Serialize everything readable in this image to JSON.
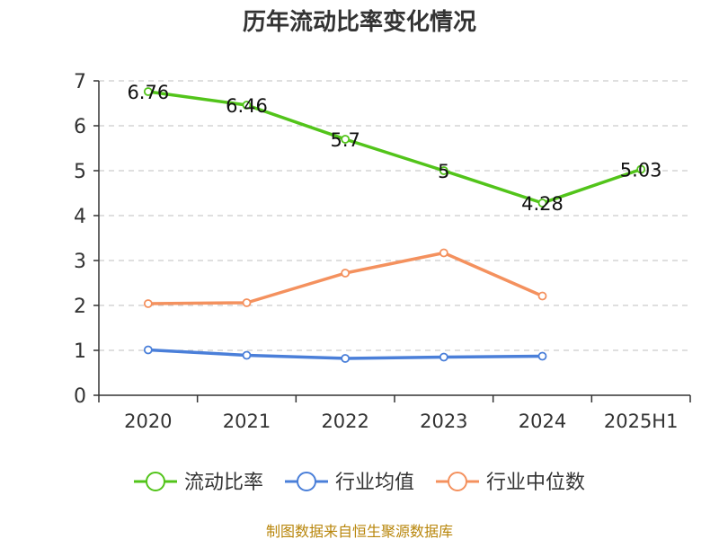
{
  "chart_data": {
    "type": "line",
    "title": "历年流动比率变化情况",
    "categories": [
      "2020",
      "2021",
      "2022",
      "2023",
      "2024",
      "2025H1"
    ],
    "ylim": [
      0,
      7
    ],
    "yticks": [
      0,
      1,
      2,
      3,
      4,
      5,
      6,
      7
    ],
    "grid": true,
    "legend_position": "bottom",
    "series": [
      {
        "name": "流动比率",
        "color": "#52c41a",
        "values": [
          6.76,
          6.46,
          5.7,
          5,
          4.28,
          5.03
        ],
        "labels": [
          "6.76",
          "6.46",
          "5.7",
          "5",
          "4.28",
          "5.03"
        ]
      },
      {
        "name": "行业均值",
        "color": "#4a7fd9",
        "values": [
          1.01,
          0.89,
          0.82,
          0.85,
          0.87,
          null
        ]
      },
      {
        "name": "行业中位数",
        "color": "#f4915e",
        "values": [
          2.04,
          2.06,
          2.72,
          3.17,
          2.21,
          null
        ]
      }
    ]
  },
  "footer": {
    "source": "制图数据来自恒生聚源数据库"
  }
}
